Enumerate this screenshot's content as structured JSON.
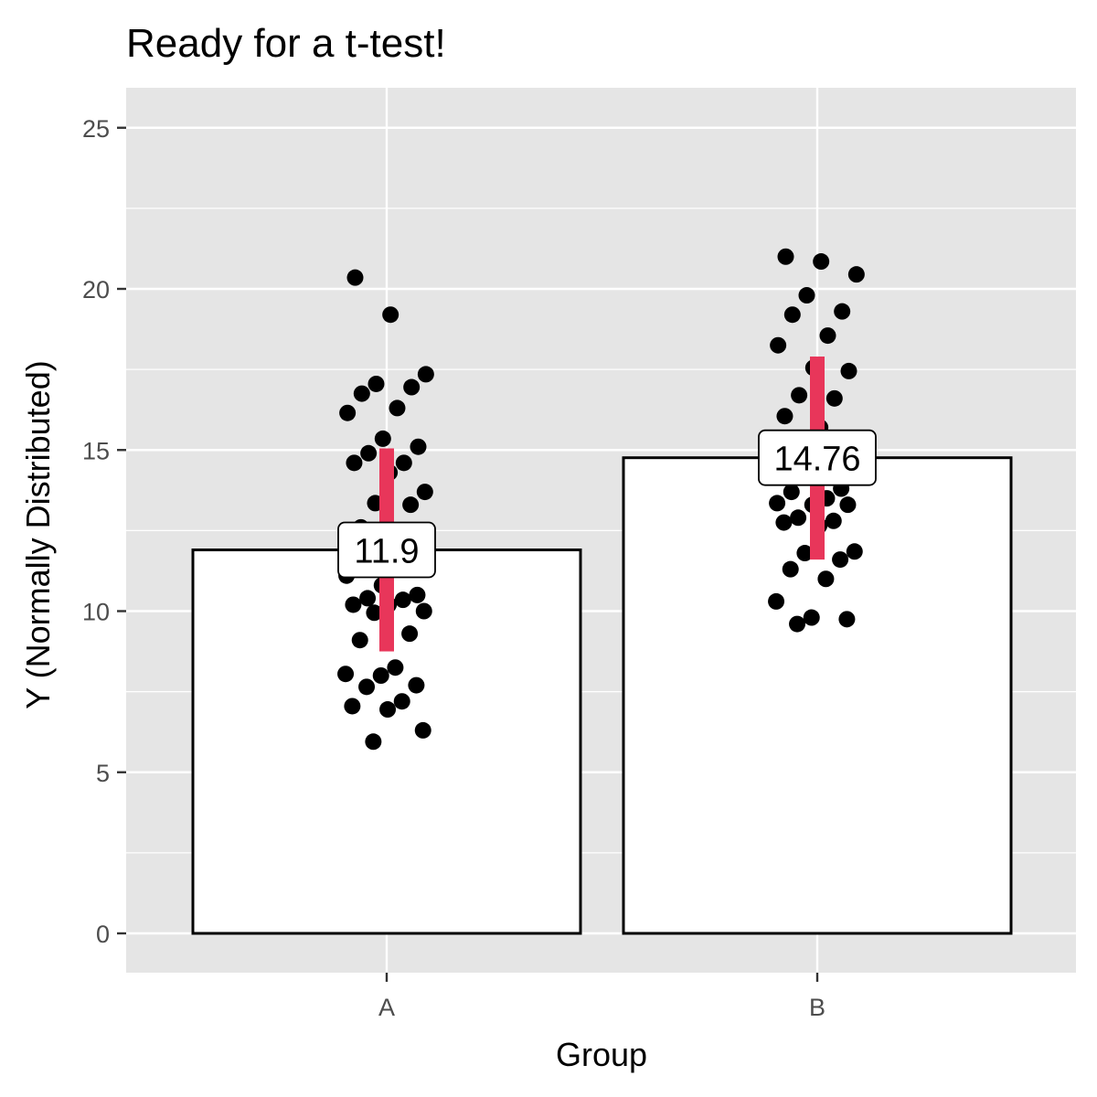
{
  "chart_data": {
    "type": "bar",
    "title": "Ready for a t-test!",
    "xlabel": "Group",
    "ylabel": "Y (Normally Distributed)",
    "categories": [
      "A",
      "B"
    ],
    "values": [
      11.9,
      14.76
    ],
    "value_labels": [
      "11.9",
      "14.76"
    ],
    "error_bars": [
      {
        "category": "A",
        "low": 8.75,
        "high": 15.05
      },
      {
        "category": "B",
        "low": 11.6,
        "high": 17.9
      }
    ],
    "points": [
      {
        "category": "A",
        "y": [
          20.35,
          19.2,
          17.35,
          17.05,
          16.95,
          16.75,
          16.3,
          16.15,
          15.35,
          15.1,
          14.9,
          14.6,
          14.6,
          14.3,
          13.7,
          13.35,
          13.3,
          12.6,
          12.1,
          11.1,
          10.8,
          10.5,
          10.4,
          10.35,
          10.2,
          10.2,
          10.0,
          9.95,
          9.3,
          9.1,
          8.25,
          8.05,
          8.0,
          7.7,
          7.65,
          7.2,
          7.05,
          6.95,
          6.3,
          5.95
        ]
      },
      {
        "category": "B",
        "y": [
          21.0,
          20.85,
          20.45,
          19.8,
          19.3,
          19.2,
          18.55,
          18.25,
          17.55,
          17.45,
          16.7,
          16.6,
          16.05,
          15.7,
          15.0,
          14.7,
          13.8,
          13.7,
          13.5,
          13.35,
          13.3,
          13.3,
          12.9,
          12.8,
          12.75,
          12.65,
          11.85,
          11.8,
          11.6,
          11.3,
          11.0,
          10.3,
          9.8,
          9.75,
          9.6
        ]
      }
    ],
    "ylim": [
      -1.2,
      26.2
    ],
    "yticks": [
      0,
      5,
      10,
      15,
      20,
      25
    ],
    "grid": true,
    "colors": {
      "panel": "#e5e5e5",
      "grid": "#ffffff",
      "bar_fill": "#ffffff",
      "bar_outline": "#000000",
      "points": "#000000",
      "error_bar": "#e8365a",
      "tick": "#333333"
    }
  }
}
